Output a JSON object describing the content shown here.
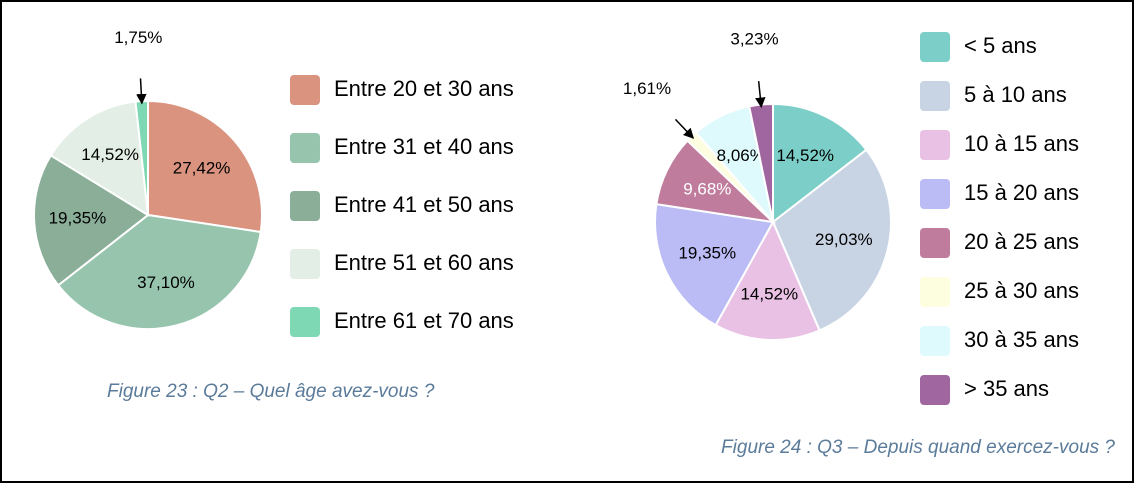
{
  "chart_data": [
    {
      "type": "pie",
      "title": "Figure 23 : Q2 – Quel âge avez-vous ?",
      "categories": [
        "Entre 20 et 30 ans",
        "Entre 31 et 40 ans",
        "Entre 41 et 50 ans",
        "Entre 51 et 60 ans",
        "Entre 61 et 70 ans"
      ],
      "values": [
        27.42,
        37.1,
        19.35,
        14.52,
        1.75
      ],
      "value_labels": [
        "27,42%",
        "37,10%",
        "19,35%",
        "14,52%",
        "1,75%"
      ],
      "colors": [
        "#d9937f",
        "#96c4ad",
        "#8aae98",
        "#e2eee6",
        "#7fd8b4"
      ]
    },
    {
      "type": "pie",
      "title": "Figure 24 : Q3 – Depuis quand exercez-vous ?",
      "categories": [
        "< 5 ans",
        "5 à 10 ans",
        "10 à 15 ans",
        "15 à 20 ans",
        "20 à 25 ans",
        "25 à 30 ans",
        "30 à 35 ans",
        "> 35 ans"
      ],
      "values": [
        14.52,
        29.03,
        14.52,
        19.35,
        9.68,
        1.61,
        8.06,
        3.23
      ],
      "value_labels": [
        "14,52%",
        "29,03%",
        "14,52%",
        "19,35%",
        "9,68%",
        "1,61%",
        "8,06%",
        "3,23%"
      ],
      "colors": [
        "#7ccfc8",
        "#c8d4e4",
        "#e8c1e4",
        "#bbbcf5",
        "#c07c9c",
        "#fdfde0",
        "#dffafc",
        "#a066a0"
      ]
    }
  ]
}
